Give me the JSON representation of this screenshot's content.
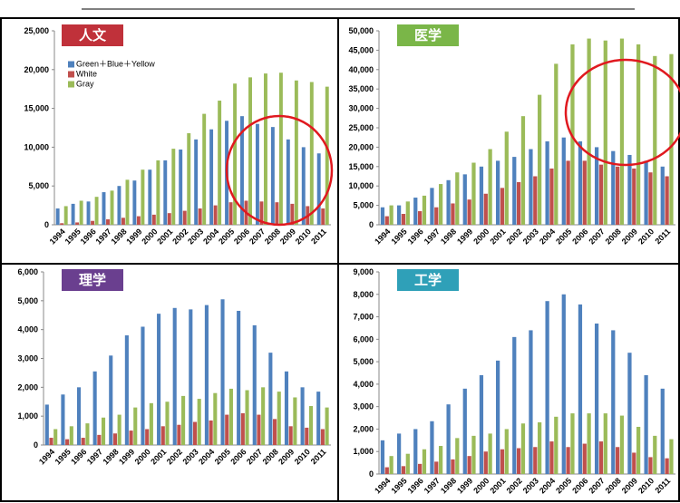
{
  "chart_data": [
    {
      "type": "bar",
      "title": "人文",
      "title_color": "#c0313a",
      "legend": true,
      "categories": [
        "1994",
        "1995",
        "1996",
        "1997",
        "1998",
        "1999",
        "2000",
        "2001",
        "2002",
        "2003",
        "2004",
        "2005",
        "2006",
        "2007",
        "2008",
        "2009",
        "2010",
        "2011"
      ],
      "series": [
        {
          "name": "Green＋Blue＋Yellow",
          "color": "#4f81bd",
          "values": [
            2100,
            2700,
            3000,
            4200,
            5000,
            5700,
            7100,
            8300,
            9700,
            11000,
            12300,
            13400,
            14000,
            13000,
            12600,
            11000,
            10000,
            9200
          ]
        },
        {
          "name": "White",
          "color": "#c0504d",
          "values": [
            200,
            300,
            500,
            700,
            900,
            1100,
            1300,
            1500,
            1800,
            2100,
            2500,
            2900,
            3100,
            3000,
            2900,
            2700,
            2400,
            2100
          ]
        },
        {
          "name": "Gray",
          "color": "#9bbb59",
          "values": [
            2400,
            3100,
            3600,
            4400,
            5800,
            7100,
            8300,
            9800,
            11800,
            14300,
            16000,
            18200,
            19000,
            19500,
            19600,
            18600,
            18400,
            17800
          ]
        }
      ],
      "ylim": [
        0,
        25000
      ],
      "yticks": [
        0,
        {
          "value": 5000,
          "label": "5,000"
        },
        {
          "value": 10000,
          "label": "10,000"
        },
        {
          "value": 15000,
          "label": "15,000"
        },
        {
          "value": 20000,
          "label": "20,000"
        },
        {
          "value": 25000,
          "label": "25,000"
        }
      ]
    },
    {
      "type": "bar",
      "title": "医学",
      "title_color": "#7ab648",
      "categories": [
        "1994",
        "1995",
        "1996",
        "1997",
        "1998",
        "1999",
        "2000",
        "2001",
        "2002",
        "2003",
        "2004",
        "2005",
        "2006",
        "2007",
        "2008",
        "2009",
        "2010",
        "2011"
      ],
      "series": [
        {
          "color": "#4f81bd",
          "values": [
            4500,
            5000,
            7000,
            9500,
            11500,
            13000,
            15000,
            16500,
            17500,
            19500,
            21500,
            22500,
            21500,
            20000,
            19000,
            18000,
            16500,
            15000
          ]
        },
        {
          "color": "#c0504d",
          "values": [
            2200,
            2800,
            3500,
            4500,
            5500,
            6500,
            8000,
            9500,
            11000,
            12500,
            14500,
            16500,
            16500,
            15500,
            15000,
            14500,
            13500,
            12500
          ]
        },
        {
          "color": "#9bbb59",
          "values": [
            5000,
            6000,
            7500,
            10500,
            13500,
            16000,
            19500,
            24000,
            28000,
            33500,
            41500,
            46500,
            48000,
            47500,
            48000,
            46500,
            43500,
            44000
          ]
        }
      ],
      "ylim": [
        0,
        50000
      ],
      "yticks": [
        0,
        {
          "value": 5000,
          "label": "5,000"
        },
        {
          "value": 10000,
          "label": "10,000"
        },
        {
          "value": 15000,
          "label": "15,000"
        },
        {
          "value": 20000,
          "label": "20,000"
        },
        {
          "value": 25000,
          "label": "25,000"
        },
        {
          "value": 30000,
          "label": "30,000"
        },
        {
          "value": 35000,
          "label": "35,000"
        },
        {
          "value": 40000,
          "label": "40,000"
        },
        {
          "value": 45000,
          "label": "45,000"
        },
        {
          "value": 50000,
          "label": "50,000"
        }
      ]
    },
    {
      "type": "bar",
      "title": "理学",
      "title_color": "#6a3f8f",
      "categories": [
        "1994",
        "1995",
        "1996",
        "1997",
        "1998",
        "1999",
        "2000",
        "2001",
        "2002",
        "2003",
        "2004",
        "2005",
        "2006",
        "2007",
        "2008",
        "2009",
        "2010",
        "2011"
      ],
      "series": [
        {
          "color": "#4f81bd",
          "values": [
            1400,
            1750,
            2000,
            2550,
            3100,
            3800,
            4100,
            4550,
            4750,
            4700,
            4850,
            5050,
            4650,
            4150,
            3200,
            2550,
            2000,
            1850
          ]
        },
        {
          "color": "#c0504d",
          "values": [
            250,
            200,
            250,
            350,
            400,
            500,
            550,
            650,
            700,
            800,
            850,
            1050,
            1100,
            1050,
            900,
            650,
            600,
            550
          ]
        },
        {
          "color": "#9bbb59",
          "values": [
            550,
            650,
            750,
            950,
            1050,
            1300,
            1450,
            1500,
            1700,
            1600,
            1800,
            1950,
            1900,
            2000,
            1850,
            1650,
            1350,
            1300
          ]
        }
      ],
      "ylim": [
        0,
        6000
      ],
      "yticks": [
        0,
        {
          "value": 1000,
          "label": "1,000"
        },
        {
          "value": 2000,
          "label": "2,000"
        },
        {
          "value": 3000,
          "label": "3,000"
        },
        {
          "value": 4000,
          "label": "4,000"
        },
        {
          "value": 5000,
          "label": "5,000"
        },
        {
          "value": 6000,
          "label": "6,000"
        }
      ]
    },
    {
      "type": "bar",
      "title": "工学",
      "title_color": "#2fa0b8",
      "categories": [
        "1994",
        "1995",
        "1996",
        "1997",
        "1998",
        "1999",
        "2000",
        "2001",
        "2002",
        "2003",
        "2004",
        "2005",
        "2006",
        "2007",
        "2008",
        "2009",
        "2010",
        "2011"
      ],
      "series": [
        {
          "color": "#4f81bd",
          "values": [
            1500,
            1800,
            2000,
            2350,
            3100,
            3800,
            4400,
            5050,
            6100,
            6400,
            7700,
            8000,
            7550,
            6700,
            6400,
            5400,
            4400,
            3800
          ]
        },
        {
          "color": "#c0504d",
          "values": [
            300,
            350,
            450,
            550,
            650,
            800,
            1000,
            1100,
            1150,
            1200,
            1450,
            1200,
            1350,
            1450,
            1200,
            950,
            750,
            700
          ]
        },
        {
          "color": "#9bbb59",
          "values": [
            800,
            900,
            1100,
            1250,
            1600,
            1700,
            1800,
            2000,
            2250,
            2300,
            2550,
            2700,
            2700,
            2700,
            2600,
            2100,
            1700,
            1550
          ]
        }
      ],
      "ylim": [
        0,
        9000
      ],
      "yticks": [
        0,
        {
          "value": 1000,
          "label": "1,000"
        },
        {
          "value": 2000,
          "label": "2,000"
        },
        {
          "value": 3000,
          "label": "3,000"
        },
        {
          "value": 4000,
          "label": "4,000"
        },
        {
          "value": 5000,
          "label": "5,000"
        },
        {
          "value": 6000,
          "label": "6,000"
        },
        {
          "value": 7000,
          "label": "7,000"
        },
        {
          "value": 8000,
          "label": "8,000"
        },
        {
          "value": 9000,
          "label": "9,000"
        }
      ]
    }
  ]
}
